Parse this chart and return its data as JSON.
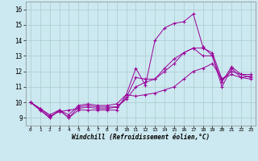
{
  "xlabel": "Windchill (Refroidissement éolien,°C)",
  "xlim": [
    -0.5,
    23.5
  ],
  "ylim": [
    8.5,
    16.5
  ],
  "xticks": [
    0,
    1,
    2,
    3,
    4,
    5,
    6,
    7,
    8,
    9,
    10,
    11,
    12,
    13,
    14,
    15,
    16,
    17,
    18,
    19,
    20,
    21,
    22,
    23
  ],
  "yticks": [
    9,
    10,
    11,
    12,
    13,
    14,
    15,
    16
  ],
  "background_color": "#cce8f0",
  "line_color": "#990099",
  "grid_color": "#aacccc",
  "series": [
    [
      10.0,
      9.5,
      9.0,
      9.5,
      9.0,
      9.5,
      9.5,
      9.5,
      9.5,
      9.5,
      10.5,
      12.2,
      11.1,
      14.0,
      14.8,
      15.1,
      15.2,
      15.7,
      13.6,
      13.0,
      11.0,
      12.2,
      11.6,
      11.5
    ],
    [
      10.0,
      9.5,
      9.0,
      9.5,
      9.0,
      9.7,
      9.8,
      9.7,
      9.7,
      9.7,
      10.3,
      11.6,
      11.5,
      11.5,
      12.0,
      12.5,
      13.2,
      13.5,
      13.0,
      13.0,
      11.3,
      12.3,
      11.8,
      11.8
    ],
    [
      10.0,
      9.6,
      9.1,
      9.4,
      9.5,
      9.6,
      9.7,
      9.6,
      9.6,
      9.7,
      10.2,
      11.0,
      11.3,
      11.5,
      12.2,
      12.8,
      13.2,
      13.5,
      13.5,
      13.2,
      11.5,
      12.0,
      11.8,
      11.6
    ],
    [
      10.0,
      9.6,
      9.2,
      9.5,
      9.2,
      9.8,
      9.9,
      9.8,
      9.8,
      9.9,
      10.5,
      10.4,
      10.5,
      10.6,
      10.8,
      11.0,
      11.5,
      12.0,
      12.2,
      12.5,
      11.5,
      11.8,
      11.6,
      11.7
    ]
  ]
}
